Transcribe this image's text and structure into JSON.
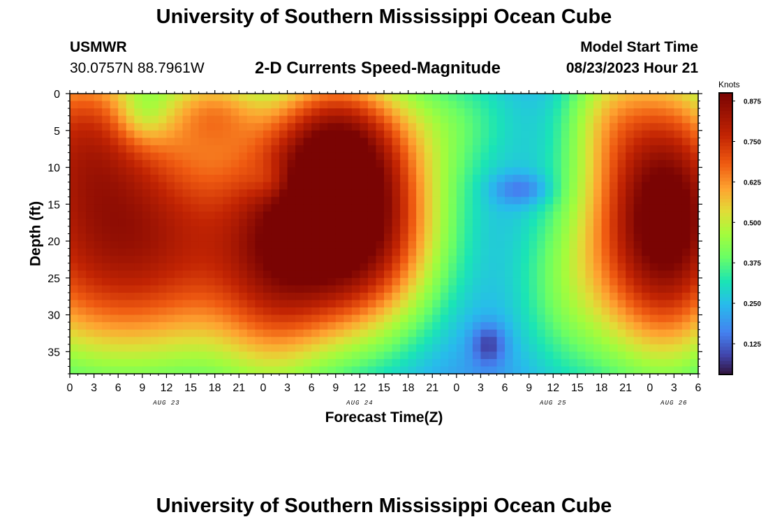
{
  "header": {
    "title": "University of Southern Mississippi Ocean Cube",
    "station": "USMWR",
    "coordinates": "30.0757N  88.7961W",
    "subtitle": "2-D Currents Speed-Magnitude",
    "model_start_label": "Model Start Time",
    "model_start_value": "08/23/2023 Hour 21"
  },
  "footer": {
    "title": "University of Southern Mississippi Ocean Cube"
  },
  "chart_data": {
    "type": "heatmap",
    "title": "2-D Currents Speed-Magnitude",
    "xlabel": "Forecast Time(Z)",
    "ylabel": "Depth (ft)",
    "x_tick_labels": [
      "0",
      "3",
      "6",
      "9",
      "12",
      "15",
      "18",
      "21",
      "0",
      "3",
      "6",
      "9",
      "12",
      "15",
      "18",
      "21",
      "0",
      "3",
      "6",
      "9",
      "12",
      "15",
      "18",
      "21",
      "0",
      "3",
      "6"
    ],
    "x_day_labels": [
      {
        "label": "AUG 23",
        "at_hour": 12
      },
      {
        "label": "AUG 24",
        "at_hour": 36
      },
      {
        "label": "AUG 25",
        "at_hour": 60
      },
      {
        "label": "AUG 26",
        "at_hour": 75
      }
    ],
    "xlim": [
      0,
      78
    ],
    "y_tick_labels": [
      "0",
      "5",
      "10",
      "15",
      "20",
      "25",
      "30",
      "35"
    ],
    "ylim": [
      0,
      38
    ],
    "y_inverted": true,
    "colorbar": {
      "label": "Knots",
      "tick_labels": [
        "0.875",
        "0.750",
        "0.625",
        "0.500",
        "0.375",
        "0.250",
        "0.125"
      ],
      "range": [
        0.03,
        0.9
      ]
    },
    "blobs": [
      {
        "hour": 7,
        "depth": 20,
        "sh": 14,
        "sd": 13,
        "amp": 0.66
      },
      {
        "hour": 1,
        "depth": 3,
        "sh": 7,
        "sd": 8,
        "amp": 0.3
      },
      {
        "hour": 35,
        "depth": 18,
        "sh": 8,
        "sd": 11,
        "amp": 0.72
      },
      {
        "hour": 33,
        "depth": 5,
        "sh": 6,
        "sd": 7,
        "amp": 0.32
      },
      {
        "hour": 74,
        "depth": 17,
        "sh": 7,
        "sd": 14,
        "amp": 0.8
      },
      {
        "hour": 18,
        "depth": 2,
        "sh": 4,
        "sd": 4,
        "amp": 0.22
      },
      {
        "hour": 25,
        "depth": 28,
        "sh": 5,
        "sd": 12,
        "amp": 0.18
      },
      {
        "hour": 49,
        "depth": 3,
        "sh": 6,
        "sd": 6,
        "amp": 0.14
      },
      {
        "hour": 66,
        "depth": 2,
        "sh": 4,
        "sd": 6,
        "amp": 0.14
      },
      {
        "hour": 61,
        "depth": 27,
        "sh": 5,
        "sd": 10,
        "amp": 0.16
      },
      {
        "hour": 9,
        "depth": 3,
        "sh": 2.5,
        "sd": 3,
        "amp": -0.12
      },
      {
        "hour": 25,
        "depth": 12,
        "sh": 2,
        "sd": 2,
        "amp": -0.08
      },
      {
        "hour": 56,
        "depth": 13,
        "sh": 2.5,
        "sd": 1.5,
        "amp": -0.12
      },
      {
        "hour": 52,
        "depth": 34,
        "sh": 1.5,
        "sd": 2,
        "amp": -0.14
      }
    ],
    "base_value": 0.17,
    "grid_step_hours": 1,
    "grid_step_depth": 1
  }
}
